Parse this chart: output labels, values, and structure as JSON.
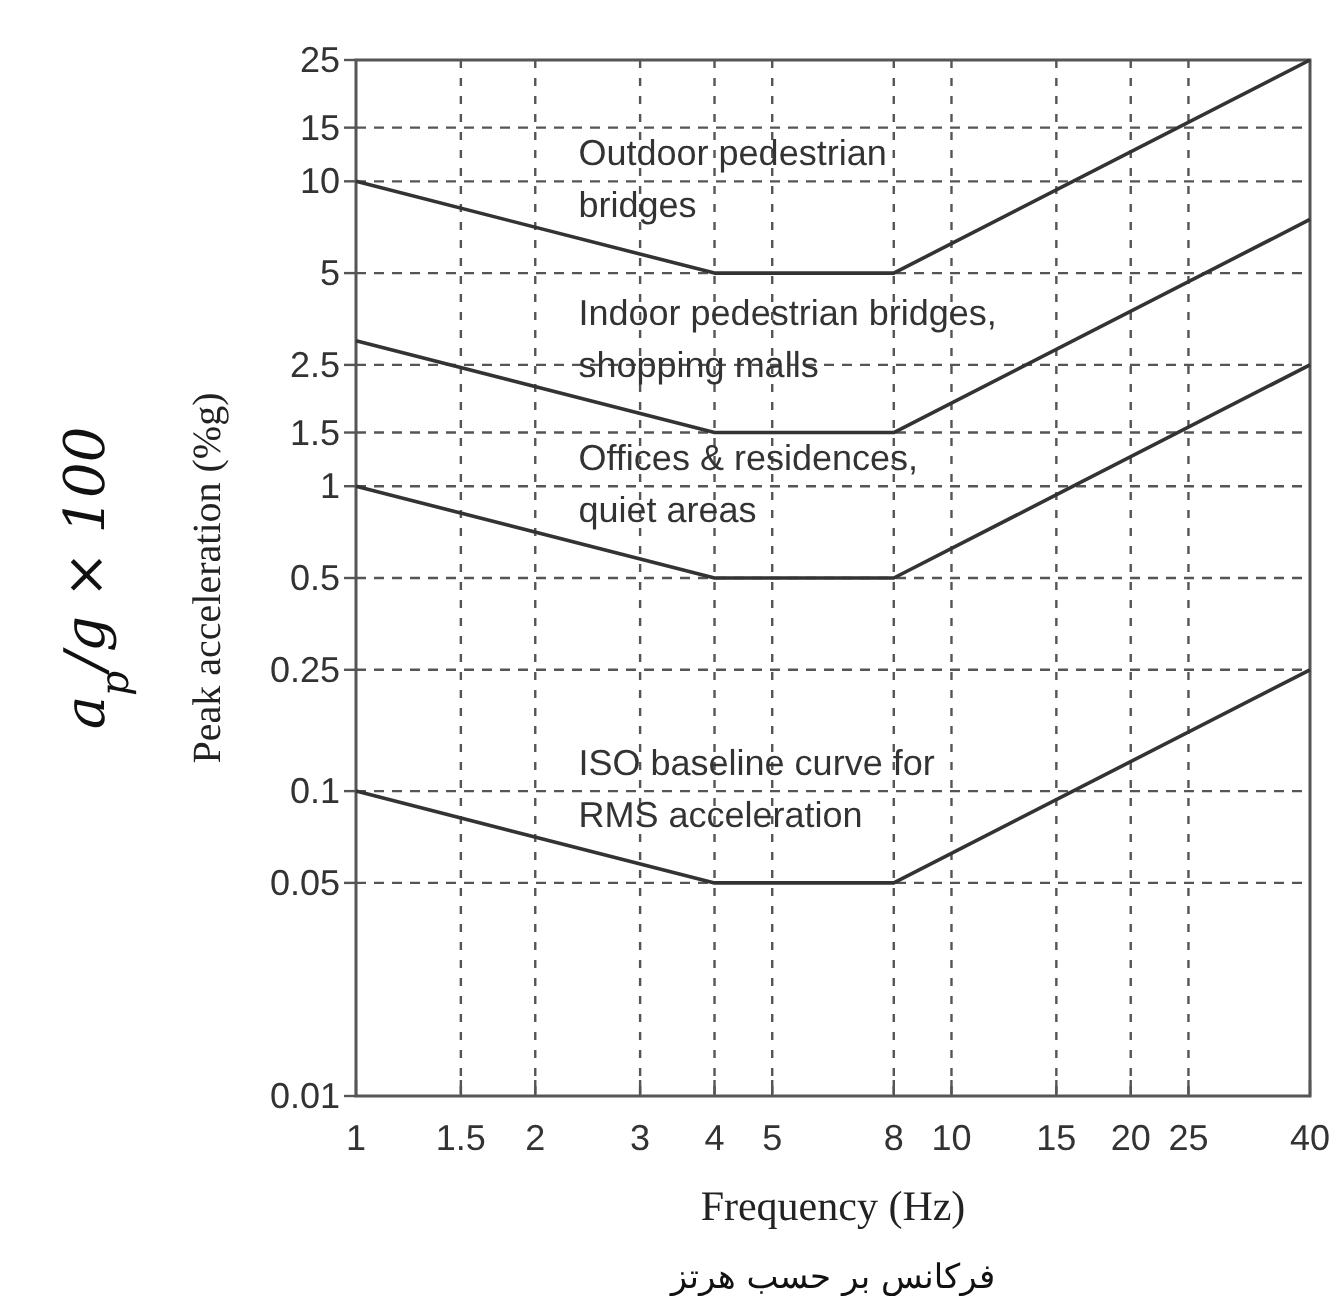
{
  "chart_data": {
    "type": "line",
    "xlabel": "Frequency (Hz)",
    "ylabel": "Peak acceleration (%g)",
    "annotations": [
      "a$_{p}$/g × 100",
      "فرکانس بر حسب هرتز"
    ],
    "log": "xy",
    "grid": true,
    "line_style": "solid",
    "xlim": [
      1,
      40
    ],
    "ylim": [
      0.01,
      25
    ],
    "xticks": [
      1,
      1.5,
      2,
      3,
      4,
      5,
      8,
      10,
      15,
      20,
      25,
      40
    ],
    "yticks": [
      0.01,
      0.05,
      0.1,
      0.25,
      0.5,
      1,
      1.5,
      2.5,
      5,
      10,
      15,
      25
    ],
    "series": [
      {
        "name": "Outdoor pedestrian\nbridges",
        "color": "#333333",
        "x": [
          1,
          4,
          8,
          40
        ],
        "values": [
          10,
          5,
          5,
          25
        ]
      },
      {
        "name": "Indoor pedestrian bridges,\nshopping malls",
        "color": "#333333",
        "x": [
          1,
          4,
          8,
          40
        ],
        "values": [
          3,
          1.5,
          1.5,
          7.5
        ]
      },
      {
        "name": "Offices & residences,\nquiet areas",
        "color": "#333333",
        "x": [
          1,
          4,
          8,
          40
        ],
        "values": [
          1,
          0.5,
          0.5,
          2.5
        ]
      },
      {
        "name": "ISO baseline curve for\nRMS acceleration",
        "color": "#333333",
        "x": [
          1,
          4,
          8,
          40
        ],
        "values": [
          0.1,
          0.05,
          0.05,
          0.25
        ]
      }
    ]
  }
}
